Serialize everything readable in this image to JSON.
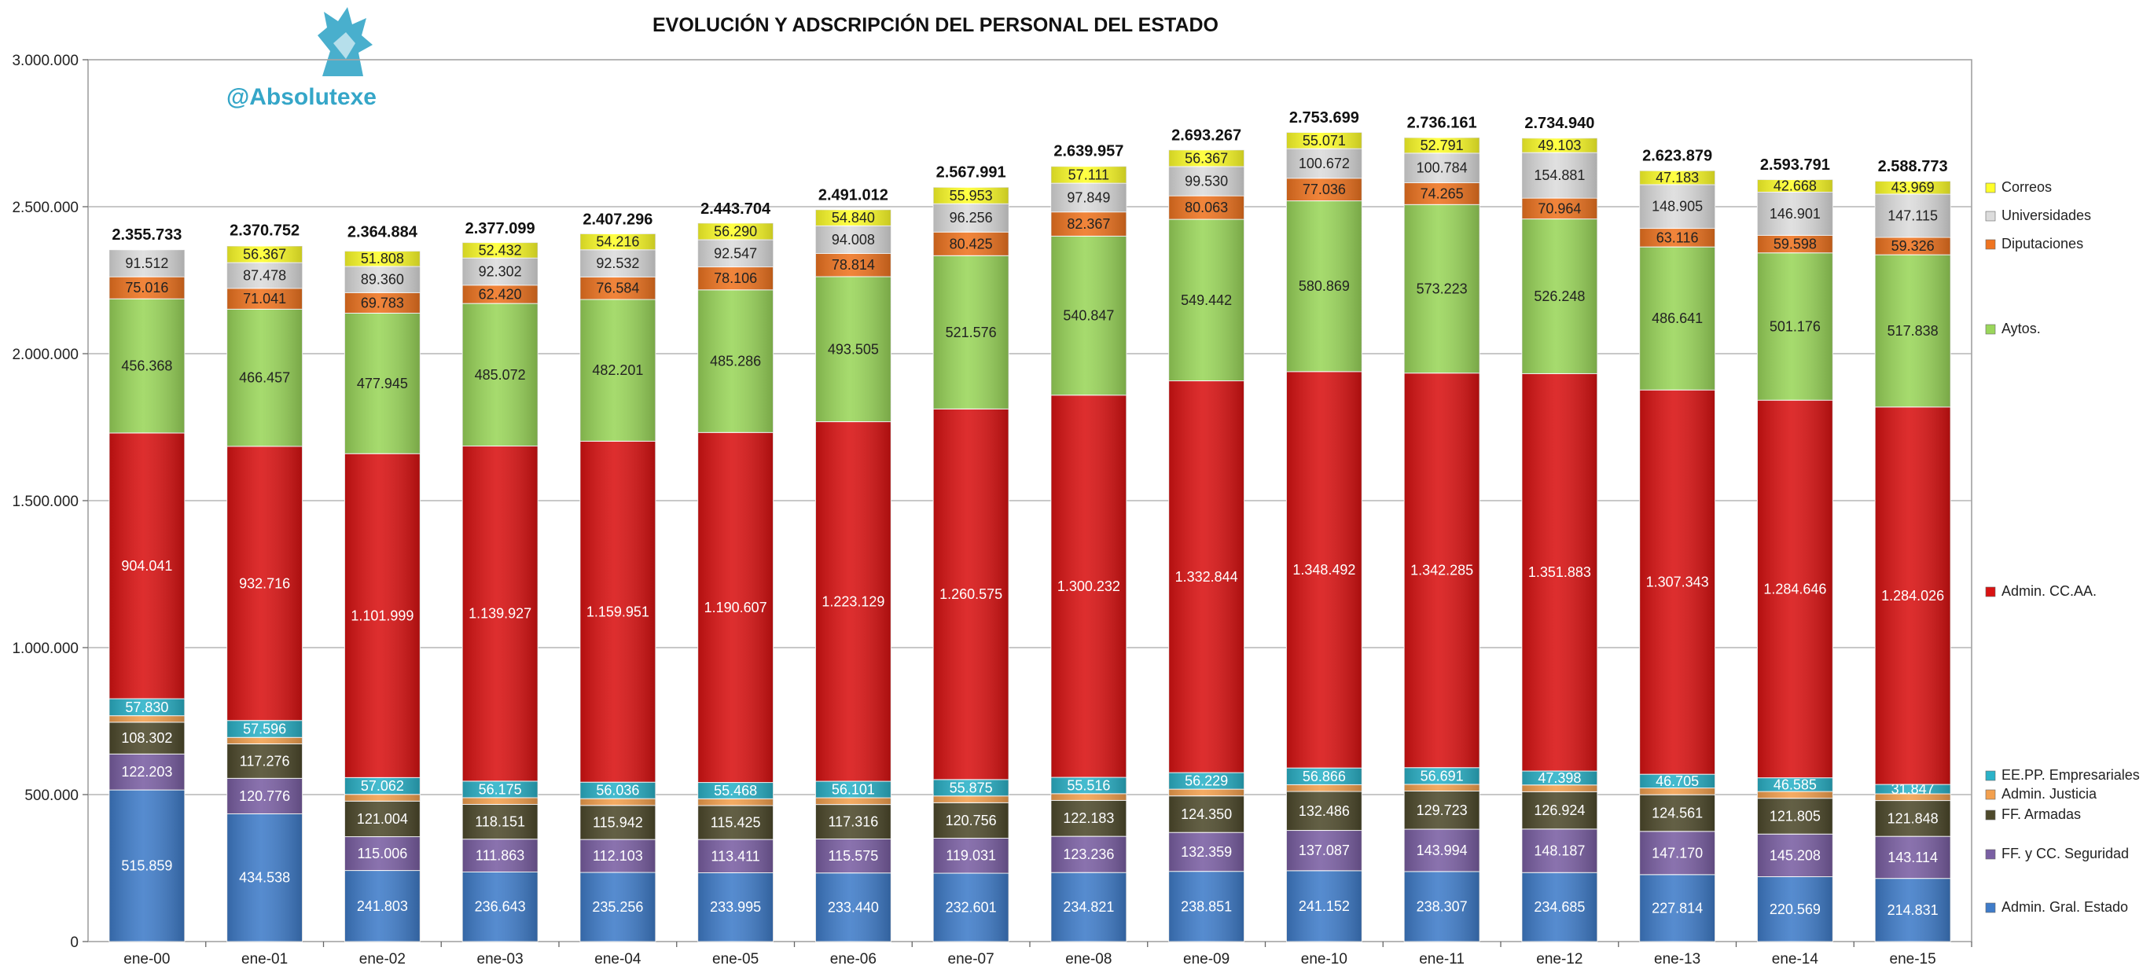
{
  "brand": {
    "handle": "@Absolutexe",
    "logo_icon": "griffin-icon",
    "color": "#35a6c8"
  },
  "chart_data": {
    "type": "bar",
    "stacked": true,
    "title": "EVOLUCIÓN Y ADSCRIPCIÓN DEL PERSONAL DEL ESTADO",
    "xlabel": "",
    "ylabel": "",
    "ylim": [
      0,
      3000000
    ],
    "yticks": [
      0,
      500000,
      1000000,
      1500000,
      2000000,
      2500000,
      3000000
    ],
    "ytick_labels": [
      "0",
      "500.000",
      "1.000.000",
      "1.500.000",
      "2.000.000",
      "2.500.000",
      "3.000.000"
    ],
    "grid": true,
    "legend_position": "right",
    "categories": [
      "ene-00",
      "ene-01",
      "ene-02",
      "ene-03",
      "ene-04",
      "ene-05",
      "ene-06",
      "ene-07",
      "ene-08",
      "ene-09",
      "ene-10",
      "ene-11",
      "ene-12",
      "ene-13",
      "ene-14",
      "ene-15"
    ],
    "totals": [
      2355733,
      2370752,
      2364884,
      2377099,
      2407296,
      2443704,
      2491012,
      2567991,
      2639957,
      2693267,
      2753699,
      2736161,
      2734940,
      2623879,
      2593791,
      2588773
    ],
    "total_labels": [
      "2.355.733",
      "2.370.752",
      "2.364.884",
      "2.377.099",
      "2.407.296",
      "2.443.704",
      "2.491.012",
      "2.567.991",
      "2.639.957",
      "2.693.267",
      "2.753.699",
      "2.736.161",
      "2.734.940",
      "2.623.879",
      "2.593.791",
      "2.588.773"
    ],
    "series": [
      {
        "name": "Admin. Gral. Estado",
        "color": "#3f7cc9",
        "label_color": "#ffffff",
        "values": [
          515859,
          434538,
          241803,
          236643,
          235256,
          233995,
          233440,
          232601,
          234821,
          238851,
          241152,
          238307,
          234685,
          227814,
          220569,
          214831
        ],
        "labels": [
          "515.859",
          "434.538",
          "241.803",
          "236.643",
          "235.256",
          "233.995",
          "233.440",
          "232.601",
          "234.821",
          "238.851",
          "241.152",
          "238.307",
          "234.685",
          "227.814",
          "220.569",
          "214.831"
        ]
      },
      {
        "name": "FF. y CC. Seguridad",
        "color": "#7a5fa3",
        "label_color": "#ffffff",
        "values": [
          122203,
          120776,
          115006,
          111863,
          112103,
          113411,
          115575,
          119031,
          123236,
          132359,
          137087,
          143994,
          148187,
          147170,
          145208,
          143114
        ],
        "labels": [
          "122.203",
          "120.776",
          "115.006",
          "111.863",
          "112.103",
          "113.411",
          "115.575",
          "119.031",
          "123.236",
          "132.359",
          "137.087",
          "143.994",
          "148.187",
          "147.170",
          "145.208",
          "143.114"
        ]
      },
      {
        "name": "FF. Armadas",
        "color": "#4e4a2c",
        "label_color": "#ffffff",
        "values": [
          108302,
          117276,
          121004,
          118151,
          115942,
          115425,
          117316,
          120756,
          122183,
          124350,
          132486,
          129723,
          126924,
          124561,
          121805,
          121848
        ],
        "labels": [
          "108.302",
          "117.276",
          "121.004",
          "118.151",
          "115.942",
          "115.425",
          "117.316",
          "120.756",
          "122.183",
          "124.350",
          "132.486",
          "129.723",
          "126.924",
          "124.561",
          "121.805",
          "121.848"
        ]
      },
      {
        "name": "Admin. Justicia",
        "color": "#f3a04e",
        "label_color": "#222222",
        "values": [
          22000,
          22000,
          23000,
          23000,
          23000,
          23000,
          23000,
          23000,
          23000,
          23000,
          23000,
          23000,
          23000,
          23000,
          23000,
          23000
        ],
        "labels": [
          "",
          "",
          "",
          "",
          "",
          "",
          "",
          "",
          "",
          "",
          "",
          "",
          "",
          "",
          "",
          ""
        ]
      },
      {
        "name": "EE.PP. Empresariales",
        "color": "#2bb2c8",
        "label_color": "#ffffff",
        "values": [
          57830,
          57596,
          57062,
          56175,
          56036,
          55468,
          56101,
          55875,
          55516,
          56229,
          56866,
          56691,
          47398,
          46705,
          46585,
          31847
        ],
        "labels": [
          "57.830",
          "57.596",
          "57.062",
          "56.175",
          "56.036",
          "55.468",
          "56.101",
          "55.875",
          "55.516",
          "56.229",
          "56.866",
          "56.691",
          "47.398",
          "46.705",
          "46.585",
          "31.847"
        ]
      },
      {
        "name": "Admin. CC.AA.",
        "color": "#d91212",
        "label_color": "#ffffff",
        "values": [
          904041,
          932716,
          1101999,
          1139927,
          1159951,
          1190607,
          1223129,
          1260575,
          1300232,
          1332844,
          1348492,
          1342285,
          1351883,
          1307343,
          1284646,
          1284026
        ],
        "labels": [
          "904.041",
          "932.716",
          "1.101.999",
          "1.139.927",
          "1.159.951",
          "1.190.607",
          "1.223.129",
          "1.260.575",
          "1.300.232",
          "1.332.844",
          "1.348.492",
          "1.342.285",
          "1.351.883",
          "1.307.343",
          "1.284.646",
          "1.284.026"
        ]
      },
      {
        "name": "Aytos.",
        "color": "#9ad65a",
        "label_color": "#222222",
        "values": [
          456368,
          466457,
          477945,
          485072,
          482201,
          485286,
          493505,
          521576,
          540847,
          549442,
          580869,
          573223,
          526248,
          486641,
          501176,
          517838
        ],
        "labels": [
          "456.368",
          "466.457",
          "477.945",
          "485.072",
          "482.201",
          "485.286",
          "493.505",
          "521.576",
          "540.847",
          "549.442",
          "580.869",
          "573.223",
          "526.248",
          "486.641",
          "501.176",
          "517.838"
        ]
      },
      {
        "name": "Diputaciones",
        "color": "#ef7420",
        "label_color": "#222222",
        "values": [
          75016,
          71041,
          69783,
          62420,
          76584,
          78106,
          78814,
          80425,
          82367,
          80063,
          77036,
          74265,
          70964,
          63116,
          59598,
          59326
        ],
        "labels": [
          "75.016",
          "71.041",
          "69.783",
          "62.420",
          "76.584",
          "78.106",
          "78.814",
          "80.425",
          "82.367",
          "80.063",
          "77.036",
          "74.265",
          "70.964",
          "63.116",
          "59.598",
          "59.326"
        ]
      },
      {
        "name": "Universidades",
        "color": "#dcdcdc",
        "label_color": "#222222",
        "values": [
          91512,
          87478,
          89360,
          92302,
          92532,
          92547,
          94008,
          96256,
          97849,
          99530,
          100672,
          100784,
          154881,
          148905,
          146901,
          147115
        ],
        "labels": [
          "91.512",
          "87.478",
          "89.360",
          "92.302",
          "92.532",
          "92.547",
          "94.008",
          "96.256",
          "97.849",
          "99.530",
          "100.672",
          "100.784",
          "154.881",
          "148.905",
          "146.901",
          "147.115"
        ]
      },
      {
        "name": "Correos",
        "color": "#ffff2a",
        "label_color": "#222222",
        "values": [
          0,
          56367,
          51808,
          52432,
          54216,
          56290,
          54840,
          55953,
          57111,
          56367,
          55071,
          52791,
          49103,
          47183,
          42668,
          43969
        ],
        "labels": [
          "",
          "56.367",
          "51.808",
          "52.432",
          "54.216",
          "56.290",
          "54.840",
          "55.953",
          "57.111",
          "56.367",
          "55.071",
          "52.791",
          "49.103",
          "47.183",
          "42.668",
          "43.969"
        ]
      }
    ]
  }
}
